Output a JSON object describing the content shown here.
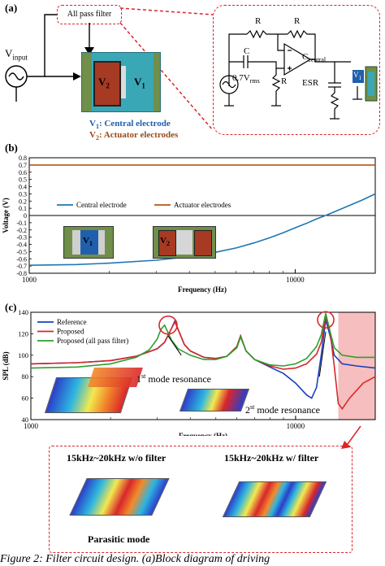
{
  "panel_a": {
    "label": "(a)",
    "filter_box": "All pass filter",
    "v_input_main": "V",
    "v_input_sub": "input",
    "electrode_v1": "V",
    "electrode_v1_sub": "1",
    "electrode_v2": "V",
    "electrode_v2_sub": "2",
    "legend_v1": "V",
    "legend_v1_sub": "1",
    "legend_v1_text": ": Central electrode",
    "legend_v2": "V",
    "legend_v2_sub": "2",
    "legend_v2_text": ": Actuator electrodes",
    "circuit": {
      "r_top_left": "R",
      "r_top_right": "R",
      "c_label": "C",
      "c_central": "C",
      "c_central_sub": "central",
      "source": "0.7V",
      "source_sub": "rms",
      "r_bottom": "R",
      "esr": "ESR",
      "v1_box": "V",
      "v1_box_sub": "1"
    }
  },
  "chart_b_labels": {
    "label": "(b)",
    "v1": "V",
    "v1_sub": "1",
    "v2": "V",
    "v2_sub": "2"
  },
  "chart_c_labels": {
    "label": "(c)",
    "mode1": "1",
    "mode1_sup": "st",
    "mode1_rest": " mode resonance",
    "mode2": "2",
    "mode2_sup": "st",
    "mode2_rest": " mode resonance"
  },
  "bottom_box": {
    "left_title": "15kHz~20kHz w/o filter",
    "right_title": "15kHz~20kHz w/ filter",
    "parasitic": "Parasitic mode"
  },
  "caption": "Figure 2: Filter circuit design. (a)Block diagram of driving",
  "colors": {
    "red": "#d9262b",
    "blue": "#1f5fae",
    "brown": "#b5541a",
    "green": "#2ca02c"
  },
  "chart_data": [
    {
      "type": "line",
      "xscale": "log",
      "xlim": [
        1000,
        20000
      ],
      "ylim": [
        -0.8,
        0.8
      ],
      "xlabel": "Frequency (Hz)",
      "ylabel": "Voltage (V)",
      "xticks": [
        1000,
        10000
      ],
      "xtick_labels": [
        "1000",
        "10000"
      ],
      "yticks": [
        -0.8,
        -0.7,
        -0.6,
        -0.5,
        -0.4,
        -0.3,
        -0.2,
        -0.1,
        0,
        0.1,
        0.2,
        0.3,
        0.4,
        0.5,
        0.6,
        0.7,
        0.8
      ],
      "ytick_labels": [
        "-0.8",
        "-0.7",
        "-0.6",
        "-0.5",
        "-0.4",
        "-0.3",
        "-0.2",
        "-0.1",
        "0",
        "0.1",
        "0.2",
        "0.3",
        "0.4",
        "0.5",
        "0.6",
        "0.7",
        "0.8"
      ],
      "legend": "inside-middle",
      "series": [
        {
          "name": "Central electrode",
          "color": "#1f77b4",
          "x": [
            1000,
            1500,
            2000,
            3000,
            4000,
            5000,
            6000,
            7000,
            8000,
            9000,
            10000,
            11000,
            12000,
            13000,
            14000,
            16000,
            18000,
            20000
          ],
          "y": [
            -0.69,
            -0.68,
            -0.66,
            -0.62,
            -0.57,
            -0.51,
            -0.45,
            -0.38,
            -0.31,
            -0.24,
            -0.17,
            -0.11,
            -0.05,
            0.0,
            0.05,
            0.14,
            0.22,
            0.3
          ]
        },
        {
          "name": "Actuator electrodes",
          "color": "#b5541a",
          "x": [
            1000,
            20000
          ],
          "y": [
            0.7,
            0.7
          ]
        }
      ]
    },
    {
      "type": "line",
      "xscale": "log",
      "xlim": [
        1000,
        20000
      ],
      "ylim": [
        40,
        140
      ],
      "xlabel": "Frequency (Hz)",
      "ylabel": "SPL (dB)",
      "xticks": [
        1000,
        10000
      ],
      "xtick_labels": [
        "1000",
        "10000"
      ],
      "yticks": [
        40,
        60,
        80,
        100,
        120,
        140
      ],
      "ytick_labels": [
        "40",
        "60",
        "80",
        "100",
        "120",
        "140"
      ],
      "legend": "top-left",
      "series": [
        {
          "name": "Reference",
          "color": "#1a3fbf",
          "x": [
            1000,
            1500,
            2000,
            2500,
            3000,
            3200,
            3400,
            3500,
            3600,
            3800,
            4000,
            4500,
            5000,
            5500,
            6000,
            6200,
            6500,
            7000,
            8000,
            9000,
            10000,
            11000,
            11500,
            12000,
            12500,
            13000,
            13500,
            14000,
            15000,
            17000,
            20000
          ],
          "y": [
            92,
            93,
            95,
            99,
            106,
            112,
            125,
            132,
            124,
            110,
            104,
            98,
            97,
            99,
            108,
            118,
            104,
            96,
            89,
            83,
            74,
            63,
            60,
            70,
            100,
            133,
            118,
            100,
            92,
            90,
            88
          ]
        },
        {
          "name": "Proposed",
          "color": "#d9262b",
          "x": [
            1000,
            1500,
            2000,
            2500,
            3000,
            3200,
            3400,
            3500,
            3600,
            3800,
            4000,
            4500,
            5000,
            5500,
            6000,
            6200,
            6500,
            7000,
            8000,
            9000,
            10000,
            11000,
            12000,
            12500,
            13000,
            13500,
            14000,
            14500,
            15000,
            16000,
            18000,
            20000
          ],
          "y": [
            92,
            93,
            95,
            99,
            106,
            112,
            125,
            131,
            124,
            110,
            104,
            98,
            97,
            99,
            108,
            118,
            104,
            96,
            90,
            87,
            88,
            92,
            101,
            112,
            136,
            122,
            90,
            55,
            50,
            60,
            74,
            80
          ]
        },
        {
          "name": "Proposed (all pass filter)",
          "color": "#2ca02c",
          "x": [
            1000,
            1500,
            2000,
            2500,
            2800,
            3000,
            3100,
            3200,
            3400,
            3600,
            4000,
            4500,
            5000,
            5500,
            6000,
            6200,
            6500,
            7000,
            8000,
            9000,
            10000,
            11000,
            12000,
            12500,
            13000,
            13500,
            14000,
            15000,
            17000,
            20000
          ],
          "y": [
            88,
            89,
            92,
            98,
            105,
            115,
            124,
            128,
            114,
            106,
            100,
            96,
            96,
            99,
            107,
            117,
            104,
            96,
            91,
            90,
            92,
            97,
            108,
            119,
            139,
            122,
            107,
            100,
            98,
            98
          ]
        }
      ]
    }
  ]
}
